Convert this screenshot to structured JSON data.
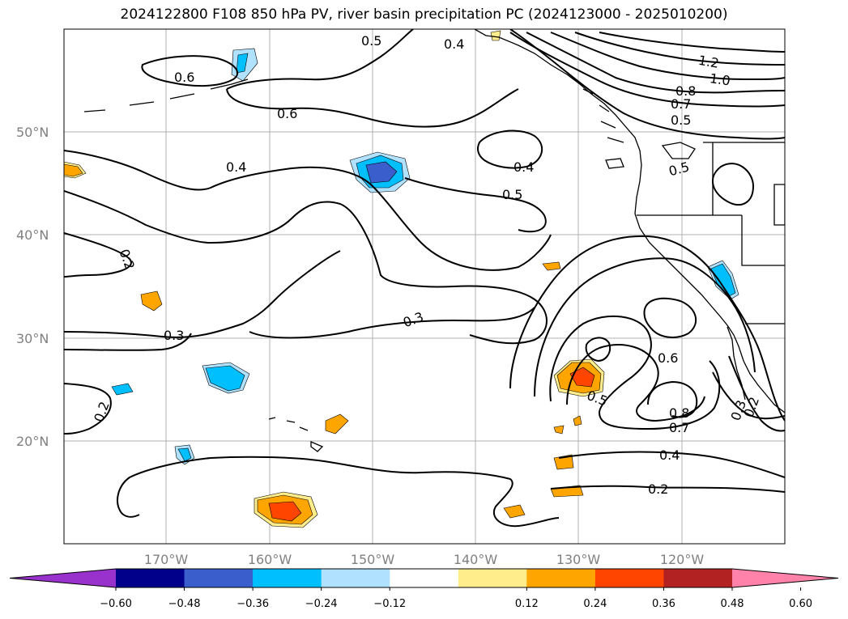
{
  "title": "2024122800 F108 850 hPa PV, river basin precipitation PC (2024123000 - 2025010200)",
  "map": {
    "lat_labels": [
      "50°N",
      "40°N",
      "30°N",
      "20°N"
    ],
    "lon_labels": [
      "170°W",
      "160°W",
      "150°W",
      "140°W",
      "130°W",
      "120°W"
    ],
    "grid": true,
    "contour_labels": [
      "0.6",
      "0.5",
      "0.4",
      "0.6",
      "0.4",
      "0.5",
      "0.4",
      "0.2",
      "0.3",
      "0.3",
      "0.2",
      "1.2",
      "1.0",
      "0.8",
      "0.7",
      "0.5",
      "0.5",
      "0.6",
      "0.5",
      "0.8",
      "0.7",
      "0.4",
      "0.2",
      "0.3",
      "0.2"
    ],
    "contour_label_series": "PV contours",
    "shading_series": "precipitation PC"
  },
  "colorbar": {
    "ticks": [
      "−0.60",
      "−0.48",
      "−0.36",
      "−0.24",
      "−0.12",
      "0.12",
      "0.24",
      "0.36",
      "0.48",
      "0.60"
    ],
    "colors": [
      "#9932cc",
      "#00008b",
      "#3a5fcd",
      "#00bfff",
      "#b0e2ff",
      "#ffffff",
      "#ffec8b",
      "#ffa500",
      "#ff4500",
      "#b22222",
      "#ff82ab"
    ]
  }
}
